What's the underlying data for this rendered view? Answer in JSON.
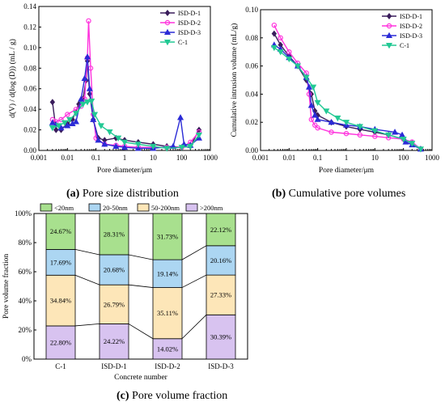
{
  "colors": {
    "isd_d_1": "#3a1d5c",
    "isd_d_2": "#ff33dd",
    "isd_d_3": "#2b2bd6",
    "c_1": "#22c994",
    "lt20": "#a8e08e",
    "n20_50": "#acd6f2",
    "n50_200": "#fde6b8",
    "gt200": "#d8c3f0"
  },
  "captions": {
    "a_letter": "(a)",
    "a_text": "Pore size distribution",
    "b_letter": "(b)",
    "b_text": "Cumulative pore volumes",
    "c_letter": "(c)",
    "c_text": "Pore volume fraction"
  },
  "chart_data": [
    {
      "type": "line",
      "xlabel": "Pore diameter/μm",
      "ylabel": "d(V) / d(log (D)) (mL / g)",
      "xscale": "log",
      "xlim": [
        0.001,
        1000
      ],
      "ylim": [
        0,
        0.14
      ],
      "xticks": [
        "0.001",
        "0.01",
        "0.1",
        "1",
        "10",
        "100",
        "1000"
      ],
      "yticks": [
        "0.00",
        "0.02",
        "0.04",
        "0.06",
        "0.08",
        "0.10",
        "0.12",
        "0.14"
      ],
      "legend_position": "top-right",
      "series": [
        {
          "name": "ISD-D-1",
          "color_key": "isd_d_1",
          "marker": "diamond",
          "points": [
            [
              0.003,
              0.047
            ],
            [
              0.004,
              0.02
            ],
            [
              0.006,
              0.02
            ],
            [
              0.01,
              0.026
            ],
            [
              0.015,
              0.03
            ],
            [
              0.025,
              0.045
            ],
            [
              0.035,
              0.05
            ],
            [
              0.045,
              0.068
            ],
            [
              0.05,
              0.087
            ],
            [
              0.06,
              0.055
            ],
            [
              0.08,
              0.03
            ],
            [
              0.12,
              0.012
            ],
            [
              0.2,
              0.01
            ],
            [
              0.5,
              0.012
            ],
            [
              1,
              0.01
            ],
            [
              3,
              0.008
            ],
            [
              10,
              0.006
            ],
            [
              30,
              0.004
            ],
            [
              100,
              0.003
            ],
            [
              200,
              0.004
            ],
            [
              400,
              0.02
            ]
          ]
        },
        {
          "name": "ISD-D-2",
          "color_key": "isd_d_2",
          "marker": "circle",
          "points": [
            [
              0.003,
              0.03
            ],
            [
              0.004,
              0.028
            ],
            [
              0.006,
              0.03
            ],
            [
              0.01,
              0.035
            ],
            [
              0.02,
              0.04
            ],
            [
              0.03,
              0.043
            ],
            [
              0.04,
              0.05
            ],
            [
              0.05,
              0.09
            ],
            [
              0.055,
              0.126
            ],
            [
              0.065,
              0.08
            ],
            [
              0.08,
              0.035
            ],
            [
              0.1,
              0.012
            ],
            [
              0.2,
              0.006
            ],
            [
              0.5,
              0.005
            ],
            [
              1,
              0.004
            ],
            [
              3,
              0.003
            ],
            [
              10,
              0.003
            ],
            [
              30,
              0.003
            ],
            [
              100,
              0.003
            ],
            [
              200,
              0.008
            ],
            [
              400,
              0.018
            ]
          ]
        },
        {
          "name": "ISD-D-3",
          "color_key": "isd_d_3",
          "marker": "triangle",
          "points": [
            [
              0.003,
              0.027
            ],
            [
              0.004,
              0.025
            ],
            [
              0.006,
              0.022
            ],
            [
              0.01,
              0.024
            ],
            [
              0.015,
              0.026
            ],
            [
              0.02,
              0.028
            ],
            [
              0.03,
              0.05
            ],
            [
              0.04,
              0.07
            ],
            [
              0.05,
              0.091
            ],
            [
              0.06,
              0.06
            ],
            [
              0.08,
              0.03
            ],
            [
              0.12,
              0.01
            ],
            [
              0.2,
              0.006
            ],
            [
              0.5,
              0.004
            ],
            [
              1,
              0.003
            ],
            [
              3,
              0.002
            ],
            [
              10,
              0.002
            ],
            [
              50,
              0.004
            ],
            [
              90,
              0.032
            ],
            [
              120,
              0.006
            ],
            [
              200,
              0.005
            ],
            [
              400,
              0.012
            ]
          ]
        },
        {
          "name": "C-1",
          "color_key": "c_1",
          "marker": "down-triangle",
          "points": [
            [
              0.003,
              0.022
            ],
            [
              0.005,
              0.024
            ],
            [
              0.008,
              0.027
            ],
            [
              0.012,
              0.03
            ],
            [
              0.02,
              0.036
            ],
            [
              0.035,
              0.045
            ],
            [
              0.05,
              0.047
            ],
            [
              0.07,
              0.048
            ],
            [
              0.09,
              0.035
            ],
            [
              0.15,
              0.024
            ],
            [
              0.3,
              0.018
            ],
            [
              0.6,
              0.012
            ],
            [
              1,
              0.008
            ],
            [
              3,
              0.006
            ],
            [
              10,
              0.004
            ],
            [
              30,
              0.002
            ],
            [
              100,
              0.003
            ],
            [
              200,
              0.004
            ],
            [
              400,
              0.015
            ]
          ]
        }
      ]
    },
    {
      "type": "line",
      "xlabel": "Pore diameter/μm",
      "ylabel": "Cumulative intrusion volume (mL/g)",
      "xscale": "log",
      "xlim": [
        0.001,
        1000
      ],
      "ylim": [
        0,
        0.1
      ],
      "xticks": [
        "0.001",
        "0.01",
        "0.1",
        "1",
        "10",
        "100",
        "1000"
      ],
      "yticks": [
        "0.00",
        "0.02",
        "0.04",
        "0.06",
        "0.08",
        "0.10"
      ],
      "legend_position": "top-right",
      "series": [
        {
          "name": "ISD-D-1",
          "color_key": "isd_d_1",
          "marker": "diamond",
          "points": [
            [
              0.003,
              0.083
            ],
            [
              0.005,
              0.075
            ],
            [
              0.01,
              0.067
            ],
            [
              0.02,
              0.06
            ],
            [
              0.04,
              0.05
            ],
            [
              0.06,
              0.04
            ],
            [
              0.08,
              0.028
            ],
            [
              0.1,
              0.025
            ],
            [
              0.3,
              0.02
            ],
            [
              1,
              0.017
            ],
            [
              3,
              0.015
            ],
            [
              10,
              0.013
            ],
            [
              30,
              0.011
            ],
            [
              100,
              0.008
            ],
            [
              200,
              0.005
            ],
            [
              400,
              0.001
            ]
          ]
        },
        {
          "name": "ISD-D-2",
          "color_key": "isd_d_2",
          "marker": "circle",
          "points": [
            [
              0.003,
              0.089
            ],
            [
              0.005,
              0.08
            ],
            [
              0.01,
              0.07
            ],
            [
              0.02,
              0.062
            ],
            [
              0.04,
              0.055
            ],
            [
              0.05,
              0.04
            ],
            [
              0.06,
              0.022
            ],
            [
              0.08,
              0.018
            ],
            [
              0.1,
              0.016
            ],
            [
              0.3,
              0.013
            ],
            [
              1,
              0.012
            ],
            [
              3,
              0.011
            ],
            [
              10,
              0.01
            ],
            [
              30,
              0.009
            ],
            [
              100,
              0.008
            ],
            [
              200,
              0.006
            ],
            [
              400,
              0.001
            ]
          ]
        },
        {
          "name": "ISD-D-3",
          "color_key": "isd_d_3",
          "marker": "triangle",
          "points": [
            [
              0.003,
              0.075
            ],
            [
              0.005,
              0.072
            ],
            [
              0.01,
              0.066
            ],
            [
              0.02,
              0.06
            ],
            [
              0.04,
              0.052
            ],
            [
              0.05,
              0.045
            ],
            [
              0.06,
              0.032
            ],
            [
              0.08,
              0.025
            ],
            [
              0.1,
              0.022
            ],
            [
              0.3,
              0.02
            ],
            [
              1,
              0.018
            ],
            [
              3,
              0.017
            ],
            [
              10,
              0.015
            ],
            [
              50,
              0.013
            ],
            [
              90,
              0.011
            ],
            [
              120,
              0.006
            ],
            [
              200,
              0.004
            ],
            [
              400,
              0.001
            ]
          ]
        },
        {
          "name": "C-1",
          "color_key": "c_1",
          "marker": "down-triangle",
          "points": [
            [
              0.003,
              0.073
            ],
            [
              0.005,
              0.07
            ],
            [
              0.01,
              0.065
            ],
            [
              0.02,
              0.06
            ],
            [
              0.04,
              0.052
            ],
            [
              0.07,
              0.045
            ],
            [
              0.1,
              0.034
            ],
            [
              0.2,
              0.028
            ],
            [
              0.5,
              0.023
            ],
            [
              1,
              0.02
            ],
            [
              3,
              0.017
            ],
            [
              10,
              0.014
            ],
            [
              30,
              0.011
            ],
            [
              100,
              0.008
            ],
            [
              200,
              0.005
            ],
            [
              400,
              0.001
            ]
          ]
        }
      ]
    },
    {
      "type": "bar",
      "stacked": true,
      "xlabel": "Concrete number",
      "ylabel": "Pore volume fraction",
      "ylim": [
        0,
        100
      ],
      "yticks": [
        "0%",
        "20%",
        "40%",
        "60%",
        "80%",
        "100%"
      ],
      "categories": [
        "C-1",
        "ISD-D-1",
        "ISD-D-2",
        "ISD-D-3"
      ],
      "legend_position": "top",
      "series": [
        {
          "name": ">200nm",
          "color_key": "gt200",
          "values": [
            22.8,
            24.22,
            14.02,
            30.39
          ],
          "labels": [
            "22.80%",
            "24.22%",
            "14.02%",
            "30.39%"
          ]
        },
        {
          "name": "50-200nm",
          "color_key": "n50_200",
          "values": [
            34.84,
            26.79,
            35.11,
            27.33
          ],
          "labels": [
            "34.84%",
            "26.79%",
            "35.11%",
            "27.33%"
          ]
        },
        {
          "name": "20-50nm",
          "color_key": "n20_50",
          "values": [
            17.69,
            20.68,
            19.14,
            20.16
          ],
          "labels": [
            "17.69%",
            "20.68%",
            "19.14%",
            "20.16%"
          ]
        },
        {
          "name": "<20nm",
          "color_key": "lt20",
          "values": [
            24.67,
            28.31,
            31.73,
            22.12
          ],
          "labels": [
            "24.67%",
            "28.31%",
            "31.73%",
            "22.12%"
          ]
        }
      ],
      "legend_order": [
        "<20nm",
        "20-50nm",
        "50-200nm",
        ">200nm"
      ]
    }
  ]
}
